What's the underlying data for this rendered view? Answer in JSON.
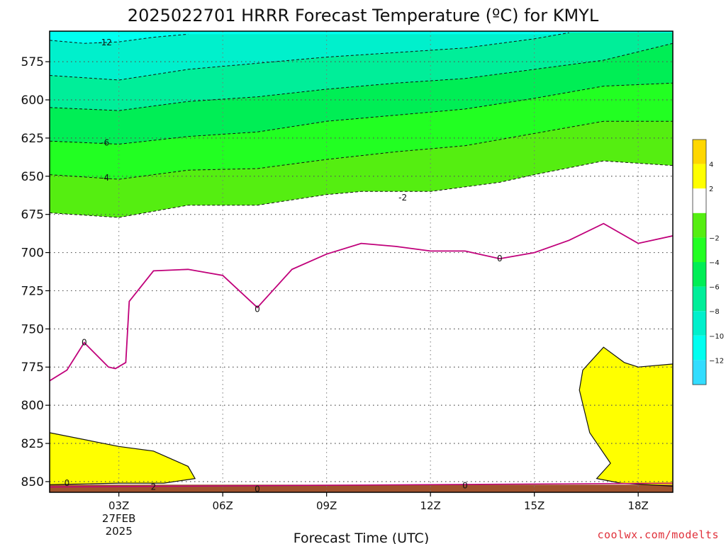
{
  "chart_data": {
    "type": "contour",
    "title": "2025022701 HRRR Forecast Temperature (ºC) for KMYL",
    "xlabel": "Forecast Time (UTC)",
    "ylabel": "",
    "x_ticks": [
      "03Z",
      "06Z",
      "09Z",
      "12Z",
      "15Z",
      "18Z"
    ],
    "x_tick_extra": [
      "27FEB",
      "2025"
    ],
    "x_range_hours_utc": [
      1,
      19
    ],
    "y_ticks": [
      575,
      600,
      625,
      650,
      675,
      700,
      725,
      750,
      775,
      800,
      825,
      850
    ],
    "y_range_hpa": [
      555,
      857
    ],
    "y_inverted": true,
    "grid": true,
    "colorbar": {
      "labels": [
        "4",
        "2",
        "−2",
        "−4",
        "−6",
        "−8",
        "−10",
        "−12"
      ],
      "bands": [
        {
          "range": [
            4,
            6
          ],
          "color": "#FFD700"
        },
        {
          "range": [
            2,
            4
          ],
          "color": "#FFFF00"
        },
        {
          "range": [
            -2,
            2
          ],
          "color": "#FFFFFF"
        },
        {
          "range": [
            -4,
            -2
          ],
          "color": "#55EE11"
        },
        {
          "range": [
            -6,
            -4
          ],
          "color": "#22FF22"
        },
        {
          "range": [
            -8,
            -6
          ],
          "color": "#00EE55"
        },
        {
          "range": [
            -10,
            -8
          ],
          "color": "#00EE99"
        },
        {
          "range": [
            -12,
            -10
          ],
          "color": "#00F0CC"
        },
        {
          "range": [
            -14,
            -12
          ],
          "color": "#00FFF0"
        },
        {
          "range": [
            -16,
            -14
          ],
          "color": "#33DDFF"
        }
      ]
    },
    "contour_labels": [
      "-12",
      "-6",
      "-4",
      "-2",
      "0",
      "0",
      "0",
      "0",
      "0",
      "0",
      "2"
    ],
    "contours": [
      {
        "level": -2,
        "pts": [
          [
            1,
            674
          ],
          [
            3,
            677
          ],
          [
            5,
            669
          ],
          [
            7,
            669
          ],
          [
            9,
            662
          ],
          [
            10,
            660
          ],
          [
            12,
            660
          ],
          [
            14,
            654
          ],
          [
            15,
            649
          ],
          [
            17,
            640
          ],
          [
            19,
            643
          ]
        ]
      },
      {
        "level": -4,
        "pts": [
          [
            1,
            649
          ],
          [
            3,
            652
          ],
          [
            5,
            646
          ],
          [
            7,
            645
          ],
          [
            9,
            639
          ],
          [
            11,
            634
          ],
          [
            13,
            630
          ],
          [
            15,
            622
          ],
          [
            17,
            614
          ],
          [
            19,
            614
          ]
        ]
      },
      {
        "level": -6,
        "pts": [
          [
            1,
            627
          ],
          [
            3,
            629
          ],
          [
            5,
            624
          ],
          [
            7,
            621
          ],
          [
            9,
            614
          ],
          [
            11,
            610
          ],
          [
            13,
            606
          ],
          [
            15,
            599
          ],
          [
            17,
            591
          ],
          [
            19,
            589
          ]
        ]
      },
      {
        "level": -8,
        "pts": [
          [
            1,
            605
          ],
          [
            3,
            607
          ],
          [
            5,
            601
          ],
          [
            7,
            598
          ],
          [
            9,
            593
          ],
          [
            11,
            589
          ],
          [
            13,
            586
          ],
          [
            15,
            580
          ],
          [
            17,
            574
          ],
          [
            19,
            563
          ]
        ]
      },
      {
        "level": -10,
        "pts": [
          [
            1,
            584
          ],
          [
            3,
            587
          ],
          [
            5,
            580
          ],
          [
            7,
            576
          ],
          [
            9,
            572
          ],
          [
            11,
            569
          ],
          [
            13,
            566
          ],
          [
            15,
            560
          ],
          [
            16,
            556
          ]
        ]
      },
      {
        "level": -12,
        "pts": [
          [
            1,
            561
          ],
          [
            2,
            563
          ],
          [
            3,
            562
          ],
          [
            4,
            559
          ],
          [
            5,
            557
          ]
        ]
      },
      {
        "level": 0,
        "pts": [
          [
            1,
            784
          ],
          [
            1.5,
            777
          ],
          [
            2,
            759
          ],
          [
            2.7,
            775
          ],
          [
            2.9,
            776
          ],
          [
            3.2,
            772
          ],
          [
            3.3,
            732
          ],
          [
            4,
            712
          ],
          [
            5,
            711
          ],
          [
            6,
            715
          ],
          [
            7,
            736
          ],
          [
            8,
            711
          ],
          [
            9,
            701
          ],
          [
            10,
            694
          ],
          [
            11,
            696
          ],
          [
            12,
            699
          ],
          [
            13,
            699
          ],
          [
            14,
            704
          ],
          [
            15,
            700
          ],
          [
            16,
            692
          ],
          [
            17,
            681
          ],
          [
            18,
            694
          ],
          [
            19,
            689
          ]
        ]
      },
      {
        "level": 2,
        "pts": [
          [
            1,
            818
          ],
          [
            3,
            827
          ],
          [
            4,
            830
          ],
          [
            5,
            840
          ],
          [
            5.2,
            848
          ],
          [
            4.3,
            851
          ],
          [
            3,
            851
          ],
          [
            1,
            852
          ]
        ]
      },
      {
        "level": 2,
        "pts": [
          [
            19,
            773
          ],
          [
            18,
            775
          ],
          [
            17.6,
            772
          ],
          [
            17,
            762
          ],
          [
            16.4,
            777
          ],
          [
            16.3,
            790
          ],
          [
            16.6,
            818
          ],
          [
            17.2,
            838
          ],
          [
            16.8,
            848
          ],
          [
            17.5,
            851
          ],
          [
            19,
            853
          ]
        ]
      }
    ],
    "ground_color": "#A0522D",
    "ground_pressure": 852
  },
  "credit": "coolwx.com/modelts"
}
